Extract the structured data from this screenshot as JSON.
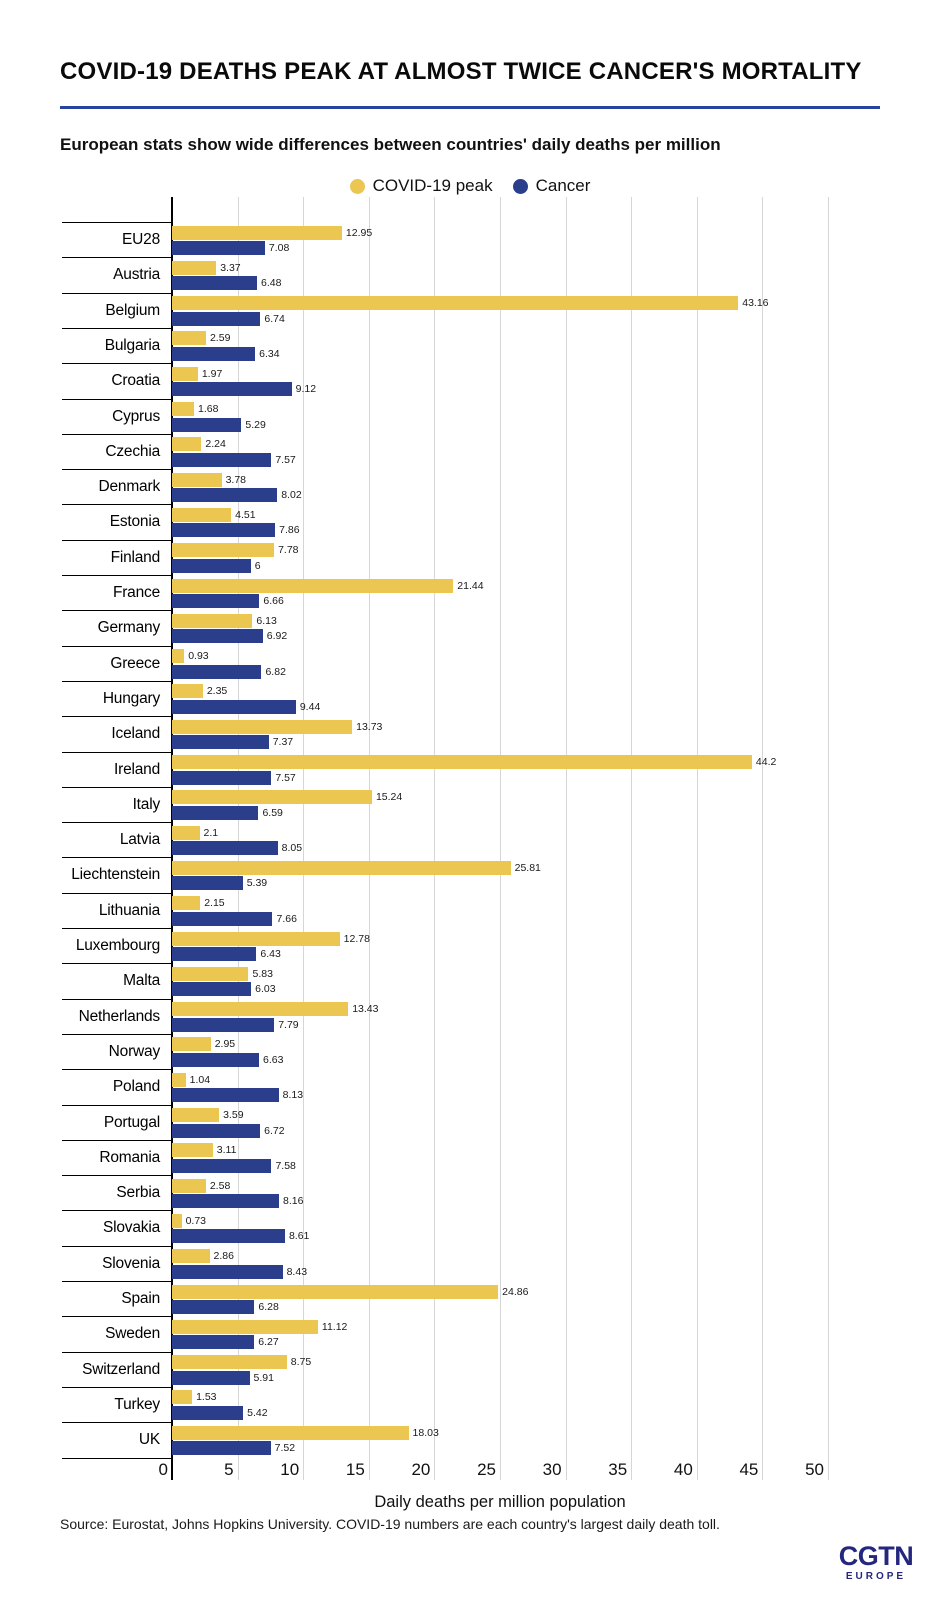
{
  "header": {
    "title": "COVID-19 DEATHS PEAK AT ALMOST TWICE CANCER'S MORTALITY",
    "subtitle": "European stats show wide differences between countries' daily deaths per million"
  },
  "legend": [
    {
      "label": "COVID-19 peak",
      "color": "#ebc752"
    },
    {
      "label": "Cancer",
      "color": "#2b3e8c"
    }
  ],
  "chart_data": {
    "type": "bar",
    "orientation": "horizontal",
    "title": "COVID-19 DEATHS PEAK AT ALMOST TWICE CANCER'S MORTALITY",
    "subtitle": "European stats show wide differences between countries' daily deaths per million",
    "xlabel": "Daily deaths per million population",
    "xlim": [
      0,
      52.5
    ],
    "xticks": [
      0,
      5,
      10,
      15,
      20,
      25,
      30,
      35,
      40,
      45,
      50
    ],
    "grid": true,
    "legend_position": "top",
    "categories": [
      "EU28",
      "Austria",
      "Belgium",
      "Bulgaria",
      "Croatia",
      "Cyprus",
      "Czechia",
      "Denmark",
      "Estonia",
      "Finland",
      "France",
      "Germany",
      "Greece",
      "Hungary",
      "Iceland",
      "Ireland",
      "Italy",
      "Latvia",
      "Liechtenstein",
      "Lithuania",
      "Luxembourg",
      "Malta",
      "Netherlands",
      "Norway",
      "Poland",
      "Portugal",
      "Romania",
      "Serbia",
      "Slovakia",
      "Slovenia",
      "Spain",
      "Sweden",
      "Switzerland",
      "Turkey",
      "UK"
    ],
    "series": [
      {
        "name": "COVID-19 peak",
        "color": "#ebc752",
        "values": [
          12.95,
          3.37,
          43.16,
          2.59,
          1.97,
          1.68,
          2.24,
          3.78,
          4.51,
          7.78,
          21.44,
          6.13,
          0.93,
          2.35,
          13.73,
          44.2,
          15.24,
          2.1,
          25.81,
          2.15,
          12.78,
          5.83,
          13.43,
          2.95,
          1.04,
          3.59,
          3.11,
          2.58,
          0.73,
          2.86,
          24.86,
          11.12,
          8.75,
          1.53,
          18.03
        ]
      },
      {
        "name": "Cancer",
        "color": "#2b3e8c",
        "values": [
          7.08,
          6.48,
          6.74,
          6.34,
          9.12,
          5.29,
          7.57,
          8.02,
          7.86,
          6,
          6.66,
          6.92,
          6.82,
          9.44,
          7.37,
          7.57,
          6.59,
          8.05,
          5.39,
          7.66,
          6.43,
          6.03,
          7.79,
          6.63,
          8.13,
          6.72,
          7.58,
          8.16,
          8.61,
          8.43,
          6.28,
          6.27,
          5.91,
          5.42,
          7.52
        ]
      }
    ]
  },
  "footer": {
    "source": "Source: Eurostat, Johns Hopkins University. COVID-19 numbers are each country's largest daily death toll.",
    "logo_main": "CGTN",
    "logo_sub": "EUROPE"
  }
}
